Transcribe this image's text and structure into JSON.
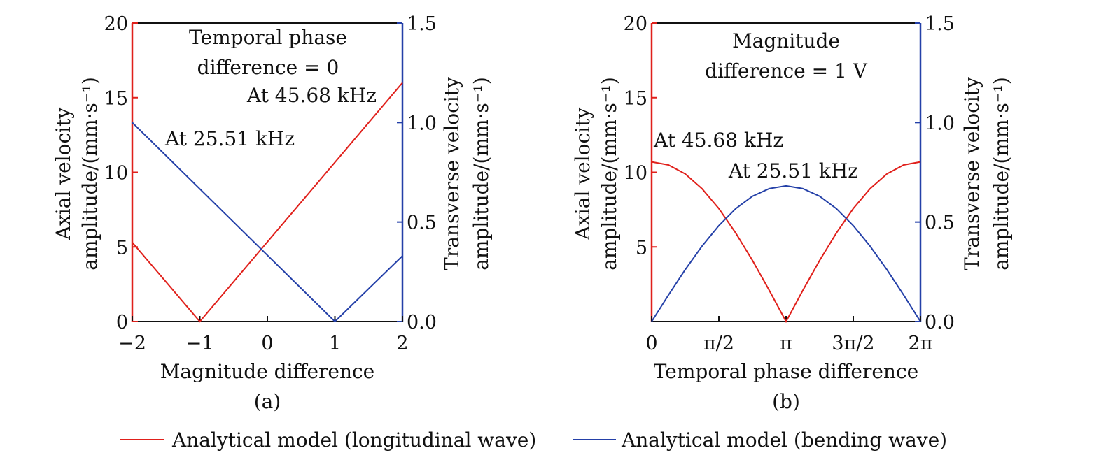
{
  "chart_data": [
    {
      "type": "line",
      "panel_label": "(a)",
      "xlabel": "Magnitude difference",
      "ylabel_left": [
        "Axial velocity",
        "amplitude/(mm·s⁻¹)"
      ],
      "ylabel_right": [
        "Transverse velocity",
        "amplitude/(mm·s⁻¹)"
      ],
      "xlim": [
        -2,
        2
      ],
      "ylim_left": [
        0,
        20
      ],
      "ylim_right": [
        0,
        1.5
      ],
      "x_ticks": [
        -2,
        -1,
        0,
        1,
        2
      ],
      "x_tick_labels": [
        "−2",
        "−1",
        "0",
        "1",
        "2"
      ],
      "y_left_ticks": [
        0,
        5,
        10,
        15,
        20
      ],
      "y_left_tick_labels": [
        "0",
        "5",
        "10",
        "15",
        "20"
      ],
      "y_right_ticks": [
        0,
        0.5,
        1.0,
        1.5
      ],
      "y_right_tick_labels": [
        "0.0",
        "0.5",
        "1.0",
        "1.5"
      ],
      "axis_colors": {
        "left": "#e0201b",
        "right": "#2440a8",
        "top": "#111111",
        "bottom": "#111111"
      },
      "annotations": [
        {
          "lines": [
            "Temporal phase",
            "difference = 0"
          ]
        },
        {
          "lines": [
            "At 45.68 kHz"
          ]
        },
        {
          "lines": [
            "At 25.51 kHz"
          ]
        }
      ],
      "series": [
        {
          "color": "#e0201b",
          "axis": "left",
          "x": [
            -2,
            -1,
            2
          ],
          "y": [
            5.3,
            0,
            16
          ]
        },
        {
          "color": "#2440a8",
          "axis": "right",
          "x": [
            -2,
            1,
            2
          ],
          "y": [
            1.0,
            0,
            0.33
          ]
        }
      ]
    },
    {
      "type": "line",
      "panel_label": "(b)",
      "xlabel": "Temporal phase difference",
      "ylabel_left": [
        "Axial velocity",
        "amplitude/(mm·s⁻¹)"
      ],
      "ylabel_right": [
        "Transverse velocity",
        "amplitude/(mm·s⁻¹)"
      ],
      "xlim": [
        0,
        6.2832
      ],
      "ylim_left": [
        0,
        20
      ],
      "ylim_right": [
        0,
        1.5
      ],
      "x_ticks": [
        0,
        1.5708,
        3.1416,
        4.7124,
        6.2832
      ],
      "x_tick_labels": [
        "0",
        "π/2",
        "π",
        "3π/2",
        "2π"
      ],
      "y_left_ticks": [
        5,
        10,
        15,
        20
      ],
      "y_left_tick_labels": [
        "5",
        "10",
        "15",
        "20"
      ],
      "y_right_ticks": [
        0,
        0.5,
        1.0,
        1.5
      ],
      "y_right_tick_labels": [
        "0.0",
        "0.5",
        "1.0",
        "1.5"
      ],
      "axis_colors": {
        "left": "#e0201b",
        "right": "#2440a8",
        "top": "#111111",
        "bottom": "#111111"
      },
      "annotations": [
        {
          "lines": [
            "Magnitude",
            "difference = 1 V"
          ]
        },
        {
          "lines": [
            "At 45.68 kHz"
          ]
        },
        {
          "lines": [
            "At 25.51 kHz"
          ]
        }
      ],
      "series": [
        {
          "color": "#e0201b",
          "axis": "left",
          "x": [
            0,
            0.3927,
            0.7854,
            1.1781,
            1.5708,
            1.9635,
            2.3562,
            2.7489,
            3.1416,
            3.5343,
            3.927,
            4.3197,
            4.7124,
            5.1051,
            5.4978,
            5.8905,
            6.2832
          ],
          "y": [
            10.7,
            10.49,
            9.89,
            8.9,
            7.57,
            5.94,
            4.1,
            2.09,
            0,
            2.09,
            4.1,
            5.94,
            7.57,
            8.9,
            9.89,
            10.49,
            10.7
          ]
        },
        {
          "color": "#2440a8",
          "axis": "right",
          "x": [
            0,
            0.3927,
            0.7854,
            1.1781,
            1.5708,
            1.9635,
            2.3562,
            2.7489,
            3.1416,
            3.5343,
            3.927,
            4.3197,
            4.7124,
            5.1051,
            5.4978,
            5.8905,
            6.2832
          ],
          "y": [
            0,
            0.133,
            0.261,
            0.379,
            0.482,
            0.567,
            0.63,
            0.668,
            0.682,
            0.668,
            0.63,
            0.567,
            0.482,
            0.379,
            0.261,
            0.133,
            0
          ]
        }
      ]
    }
  ],
  "legend": [
    {
      "label": "Analytical model (longitudinal wave)",
      "color": "#e0201b"
    },
    {
      "label": "Analytical model (bending wave)",
      "color": "#2440a8"
    }
  ]
}
